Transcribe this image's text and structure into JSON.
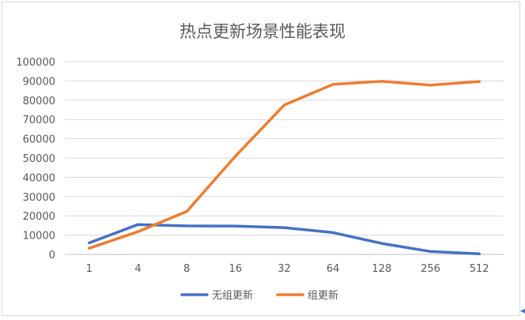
{
  "chart_data": {
    "type": "line",
    "title": "热点更新场景性能表现",
    "xlabel": "",
    "ylabel": "",
    "categories": [
      "1",
      "4",
      "8",
      "16",
      "32",
      "64",
      "128",
      "256",
      "512"
    ],
    "ylim": [
      0,
      100000
    ],
    "yticks": [
      0,
      10000,
      20000,
      30000,
      40000,
      50000,
      60000,
      70000,
      80000,
      90000,
      100000
    ],
    "grid": true,
    "legend_position": "bottom",
    "series": [
      {
        "name": "无组更新",
        "color": "#4472c4",
        "values": [
          6000,
          15500,
          14800,
          14700,
          13900,
          11300,
          5700,
          1500,
          300
        ]
      },
      {
        "name": "组更新",
        "color": "#ed7d31",
        "values": [
          3200,
          11800,
          22300,
          51000,
          77500,
          88200,
          89800,
          87800,
          89700
        ]
      }
    ]
  }
}
